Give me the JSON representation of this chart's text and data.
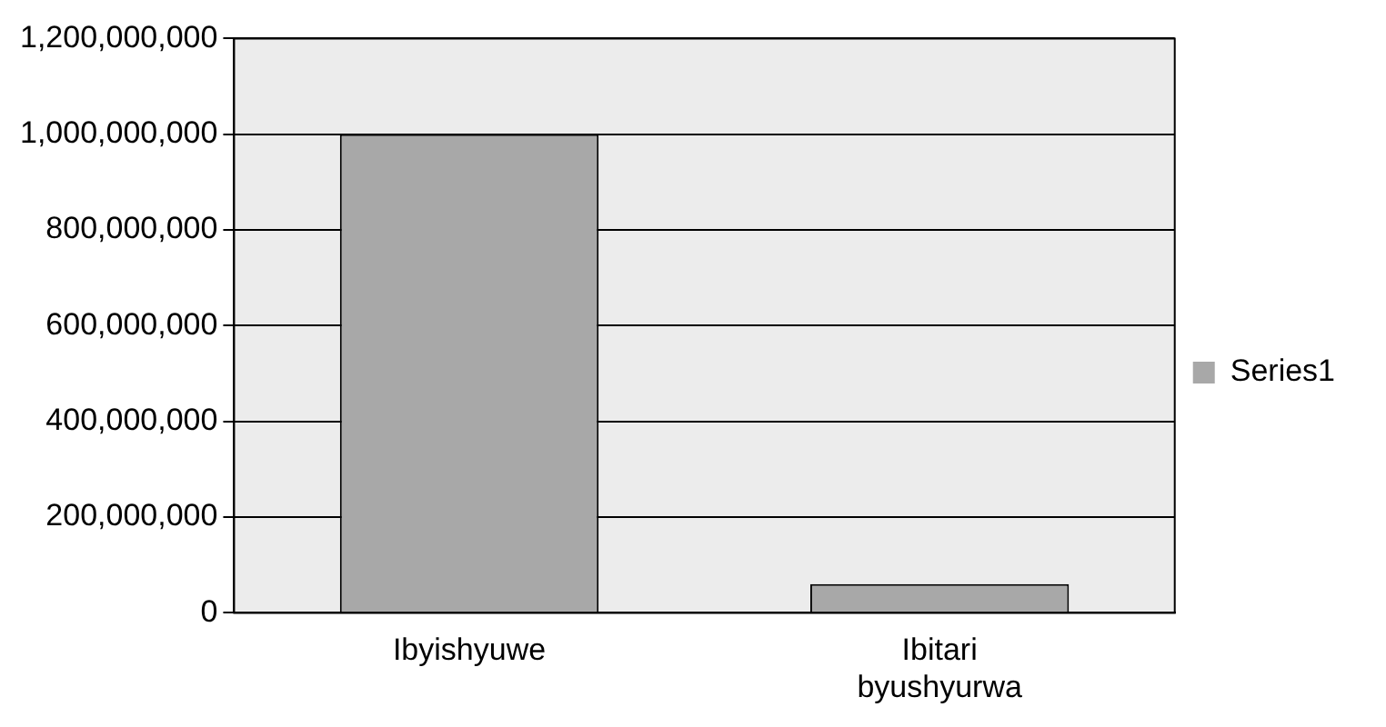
{
  "chart_data": {
    "type": "bar",
    "categories": [
      "Ibyishyuwe",
      "Ibitari byushyurwa"
    ],
    "series": [
      {
        "name": "Series1",
        "color": "#a8a8a8",
        "values": [
          1000000000,
          60000000
        ]
      }
    ],
    "ylim": [
      0,
      1200000000
    ],
    "yticks": [
      0,
      {
        "value": 200000000,
        "label": "200,000,000"
      },
      {
        "value": 400000000,
        "label": "400,000,000"
      },
      {
        "value": 600000000,
        "label": "600,000,000"
      },
      {
        "value": 800000000,
        "label": "800,000,000"
      },
      {
        "value": 1000000000,
        "label": "1,000,000,000"
      },
      {
        "value": 1200000000,
        "label": "1,200,000,000"
      }
    ],
    "grid": "y",
    "legend": "right"
  }
}
